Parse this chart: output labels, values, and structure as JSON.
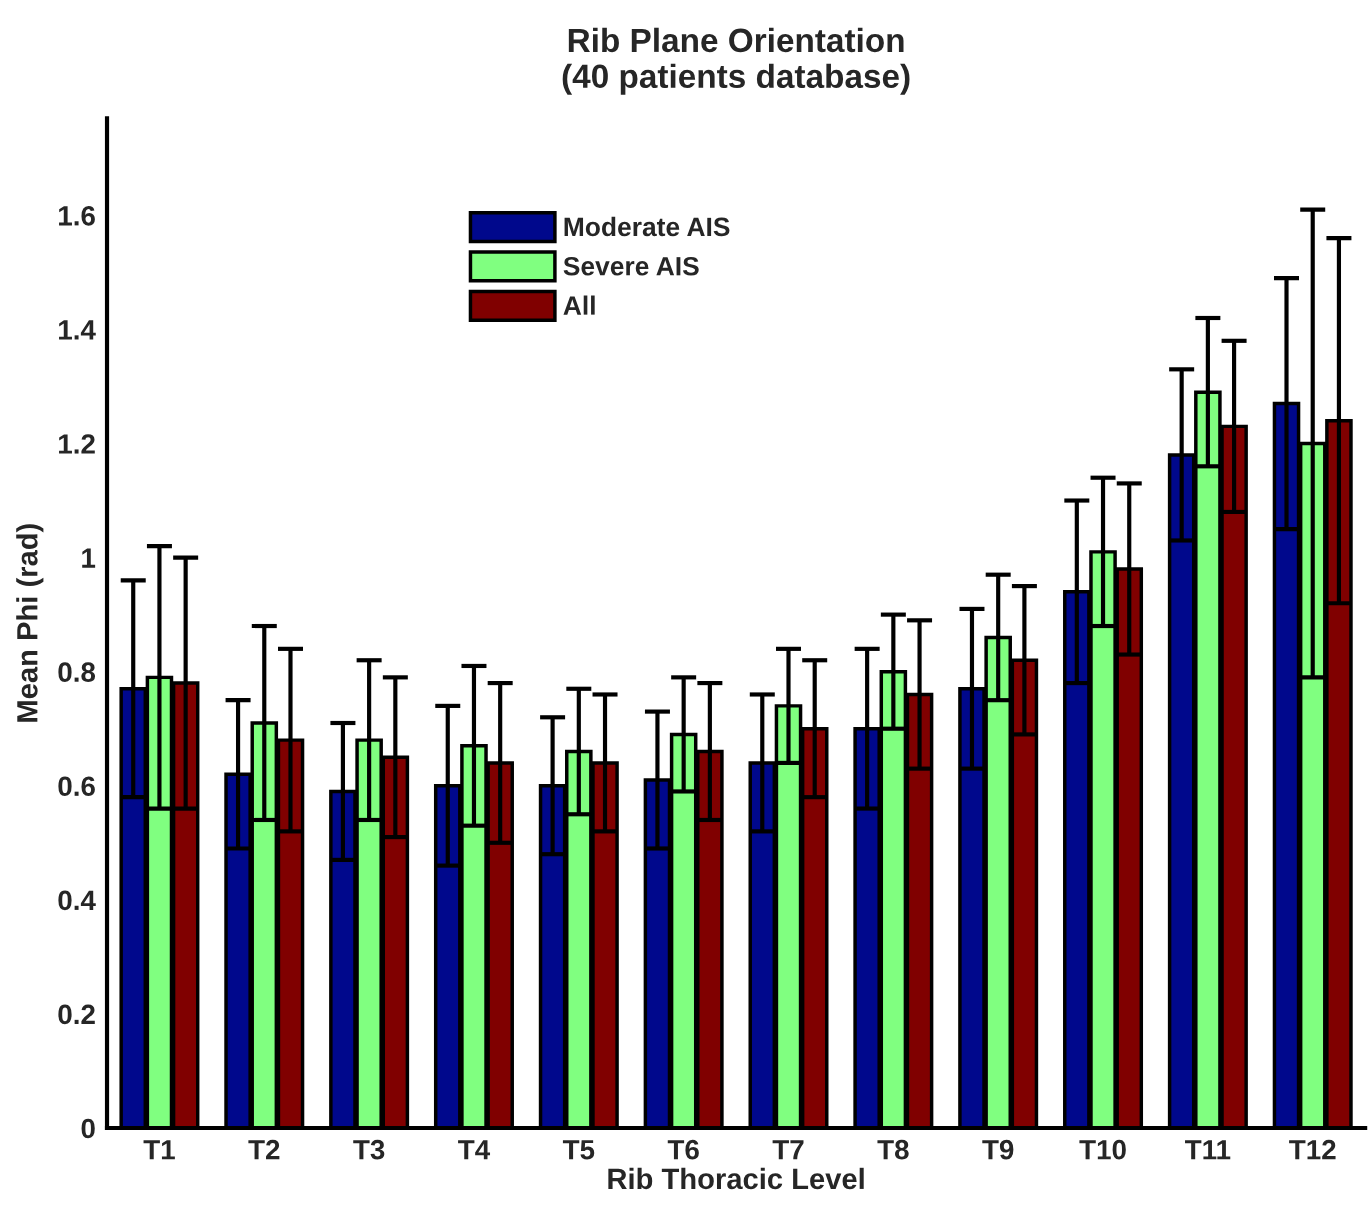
{
  "chart_data": {
    "type": "bar",
    "title": "Rib Plane Orientation\n(40 patients database)",
    "xlabel": "Rib Thoracic Level",
    "ylabel": "Mean Phi (rad)",
    "categories": [
      "T1",
      "T2",
      "T3",
      "T4",
      "T5",
      "T6",
      "T7",
      "T8",
      "T9",
      "T10",
      "T11",
      "T12"
    ],
    "series": [
      {
        "name": "Moderate AIS",
        "color": "#00088c",
        "values": [
          0.77,
          0.62,
          0.59,
          0.6,
          0.6,
          0.61,
          0.64,
          0.7,
          0.77,
          0.94,
          1.18,
          1.27
        ],
        "errors": [
          0.19,
          0.13,
          0.12,
          0.14,
          0.12,
          0.12,
          0.12,
          0.14,
          0.14,
          0.16,
          0.15,
          0.22
        ]
      },
      {
        "name": "Severe AIS",
        "color": "#80ff80",
        "values": [
          0.79,
          0.71,
          0.68,
          0.67,
          0.66,
          0.69,
          0.74,
          0.8,
          0.86,
          1.01,
          1.29,
          1.2
        ],
        "errors": [
          0.23,
          0.17,
          0.14,
          0.14,
          0.11,
          0.1,
          0.1,
          0.1,
          0.11,
          0.13,
          0.13,
          0.41
        ]
      },
      {
        "name": "All",
        "color": "#800000",
        "values": [
          0.78,
          0.68,
          0.65,
          0.64,
          0.64,
          0.66,
          0.7,
          0.76,
          0.82,
          0.98,
          1.23,
          1.24
        ],
        "errors": [
          0.22,
          0.16,
          0.14,
          0.14,
          0.12,
          0.12,
          0.12,
          0.13,
          0.13,
          0.15,
          0.15,
          0.32
        ]
      }
    ],
    "ylim": [
      0,
      1.77
    ],
    "yticks": [
      0,
      0.2,
      0.4,
      0.6,
      0.8,
      1,
      1.2,
      1.4,
      1.6
    ],
    "grid": false,
    "legend": "top left"
  }
}
